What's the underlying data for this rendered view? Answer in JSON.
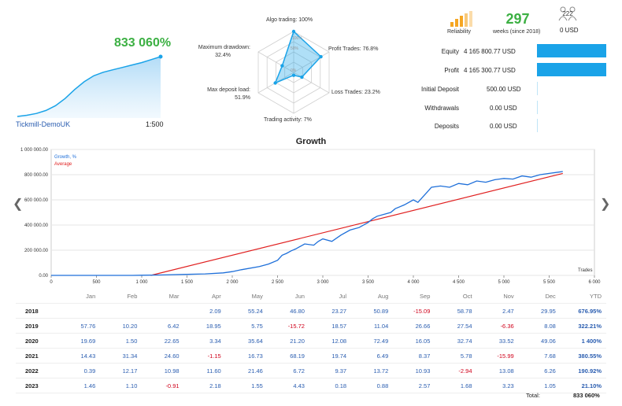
{
  "summary": {
    "gain": "833 060%",
    "account": "Tickmill-DemoUK",
    "leverage": "1:500"
  },
  "radar": {
    "algo_trading": "Algo trading: 100%",
    "profit_trades": "Profit Trades: 76.8%",
    "loss_trades": "Loss Trades: 23.2%",
    "trading_activity": "Trading activity: 7%",
    "max_deposit_load": "Max deposit load:",
    "max_deposit_load_val": "51.9%",
    "max_drawdown": "Maximum drawdown:",
    "max_drawdown_val": "32.4%",
    "ring_100": "100%",
    "ring_50": "50%",
    "ring_0": "0%",
    "values": [
      1.0,
      0.768,
      0.232,
      0.07,
      0.519,
      0.324
    ]
  },
  "stats": {
    "reliability_label": "Reliability",
    "weeks": "297",
    "weeks_label": "weeks (since 2018)",
    "subscribers": "222",
    "subscribers_value": "0 USD"
  },
  "balance": {
    "rows": [
      {
        "label": "Equity",
        "value": "4 165 800.77 USD",
        "fraction": 1.0
      },
      {
        "label": "Profit",
        "value": "4 165 300.77 USD",
        "fraction": 1.0
      },
      {
        "label": "Initial Deposit",
        "value": "500.00 USD",
        "fraction": 0
      },
      {
        "label": "Withdrawals",
        "value": "0.00 USD",
        "fraction": 0
      },
      {
        "label": "Deposits",
        "value": "0.00 USD",
        "fraction": 0
      }
    ]
  },
  "chart_data": {
    "type": "line",
    "title": "Growth",
    "legend": [
      "Growth, %",
      "Average"
    ],
    "legend_position": "top-left",
    "xlabel": "Trades",
    "xlim": [
      0,
      6000
    ],
    "ylim": [
      0,
      1000000
    ],
    "x_ticks": [
      "0",
      "500",
      "1 000",
      "1 500",
      "2 000",
      "2 500",
      "3 000",
      "3 500",
      "4 000",
      "4 500",
      "5 000",
      "5 500",
      "6 000"
    ],
    "y_ticks": [
      "0.00",
      "200 000.00",
      "400 000.00",
      "600 000.00",
      "800 000.00",
      "1 000 000.00"
    ],
    "series": [
      {
        "name": "Growth, %",
        "color": "#1e6fd9",
        "x": [
          0,
          900,
          1000,
          1200,
          1500,
          1700,
          1900,
          2000,
          2100,
          2300,
          2400,
          2500,
          2550,
          2600,
          2650,
          2700,
          2800,
          2900,
          2950,
          3000,
          3100,
          3200,
          3300,
          3400,
          3500,
          3550,
          3600,
          3700,
          3750,
          3800,
          3900,
          4000,
          4050,
          4100,
          4150,
          4200,
          4300,
          4400,
          4500,
          4600,
          4700,
          4800,
          4900,
          5000,
          5100,
          5200,
          5300,
          5400,
          5500,
          5600,
          5650
        ],
        "y": [
          0,
          0,
          1000,
          3000,
          8000,
          12000,
          20000,
          30000,
          45000,
          70000,
          90000,
          120000,
          160000,
          175000,
          195000,
          210000,
          250000,
          240000,
          270000,
          290000,
          270000,
          320000,
          360000,
          380000,
          420000,
          450000,
          470000,
          490000,
          500000,
          530000,
          560000,
          600000,
          580000,
          620000,
          660000,
          700000,
          710000,
          700000,
          730000,
          720000,
          750000,
          740000,
          760000,
          770000,
          765000,
          790000,
          780000,
          800000,
          810000,
          820000,
          825000
        ]
      },
      {
        "name": "Average",
        "color": "#e02020",
        "x": [
          1100,
          5650
        ],
        "y": [
          0,
          810000
        ]
      }
    ],
    "area_mini": [
      0,
      0.02,
      0.05,
      0.1,
      0.18,
      0.3,
      0.45,
      0.58,
      0.68,
      0.74,
      0.78,
      0.82,
      0.86,
      0.9,
      0.95,
      1.0
    ]
  },
  "returns": {
    "headers": [
      "",
      "Jan",
      "Feb",
      "Mar",
      "Apr",
      "May",
      "Jun",
      "Jul",
      "Aug",
      "Sep",
      "Oct",
      "Nov",
      "Dec",
      "YTD"
    ],
    "rows": [
      {
        "year": "2018",
        "cells": [
          "",
          "",
          "",
          "2.09",
          "55.24",
          "46.80",
          "23.27",
          "50.89",
          "-15.09",
          "58.78",
          "2.47",
          "29.95"
        ],
        "ytd": "676.95%"
      },
      {
        "year": "2019",
        "cells": [
          "57.76",
          "10.20",
          "6.42",
          "18.95",
          "5.75",
          "-15.72",
          "18.57",
          "11.04",
          "26.66",
          "27.54",
          "-6.36",
          "8.08"
        ],
        "ytd": "322.21%"
      },
      {
        "year": "2020",
        "cells": [
          "19.69",
          "1.50",
          "22.65",
          "3.34",
          "35.64",
          "21.20",
          "12.08",
          "72.49",
          "16.05",
          "32.74",
          "33.52",
          "49.06"
        ],
        "ytd": "1 400%"
      },
      {
        "year": "2021",
        "cells": [
          "14.43",
          "31.34",
          "24.60",
          "-1.15",
          "16.73",
          "68.19",
          "19.74",
          "6.49",
          "8.37",
          "5.78",
          "-15.99",
          "7.68"
        ],
        "ytd": "380.55%"
      },
      {
        "year": "2022",
        "cells": [
          "0.39",
          "12.17",
          "10.98",
          "11.60",
          "21.46",
          "6.72",
          "9.37",
          "13.72",
          "10.93",
          "-2.94",
          "13.08",
          "6.26"
        ],
        "ytd": "190.92%"
      },
      {
        "year": "2023",
        "cells": [
          "1.46",
          "1.10",
          "-0.91",
          "2.18",
          "1.55",
          "4.43",
          "0.18",
          "0.88",
          "2.57",
          "1.68",
          "3.23",
          "1.05"
        ],
        "ytd": "21.10%"
      }
    ],
    "total_label": "Total:",
    "total_value": "833 060%"
  },
  "colors": {
    "accent_green": "#3cb043",
    "accent_blue": "#1aa3e8",
    "radar_fill": "#1aa3e8",
    "reliability_orange": "#f5a623"
  }
}
